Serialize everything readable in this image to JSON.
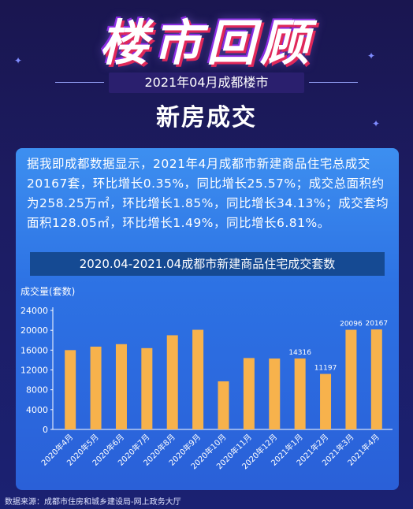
{
  "header": {
    "title": "楼市回顾",
    "subtitle": "2021年04月成都楼市",
    "section": "新房成交"
  },
  "summary": "据我即成都数据显示，2021年4月成都市新建商品住宅总成交20167套，环比增长0.35%，同比增长25.57%；成交总面积约为258.25万㎡，环比增长1.85%，同比增长34.13%；成交套均面积128.05㎡，环比增长1.49%，同比增长6.81%。",
  "chart_banner": "2020.04-2021.04成都市新建商品住宅成交套数",
  "chart_data": {
    "type": "bar",
    "title": "2020.04-2021.04成都市新建商品住宅成交套数",
    "ylabel": "成交量(套数)",
    "xlabel": "",
    "categories": [
      "2020年4月",
      "2020年5月",
      "2020年6月",
      "2020年7月",
      "2020年8月",
      "2020年9月",
      "2020年10月",
      "2020年11月",
      "2020年12月",
      "2021年1月",
      "2021年2月",
      "2021年3月",
      "2021年4月"
    ],
    "values": [
      16000,
      16700,
      17200,
      16400,
      19000,
      20100,
      9700,
      14400,
      14300,
      14316,
      11197,
      20096,
      20167
    ],
    "labels": [
      "",
      "",
      "",
      "",
      "",
      "",
      "",
      "",
      "",
      "14316",
      "11197",
      "20096",
      "20167"
    ],
    "ylim": [
      0,
      24000
    ],
    "yticks": [
      0,
      4000,
      8000,
      12000,
      16000,
      20000,
      24000
    ],
    "grid": false,
    "bar_color": "#f7b24c",
    "axis_color": "#ffffff"
  },
  "footer": "数据来源：成都市住房和城乡建设局-网上政务大厅"
}
